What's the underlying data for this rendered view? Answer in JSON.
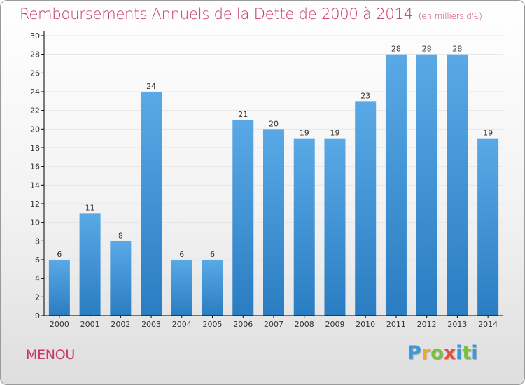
{
  "chart_data": {
    "type": "bar",
    "title": "Remboursements Annuels de la Dette de 2000 à 2014",
    "unit_label": "(en milliers d'€)",
    "categories": [
      "2000",
      "2001",
      "2002",
      "2003",
      "2004",
      "2005",
      "2006",
      "2007",
      "2008",
      "2009",
      "2010",
      "2011",
      "2012",
      "2013",
      "2014"
    ],
    "values": [
      6,
      11,
      8,
      24,
      6,
      6,
      21,
      20,
      19,
      19,
      23,
      28,
      28,
      28,
      19
    ],
    "xlabel": "",
    "ylabel": "",
    "ylim": [
      0,
      30
    ],
    "yticks": [
      0,
      2,
      4,
      6,
      8,
      10,
      12,
      14,
      16,
      18,
      20,
      22,
      24,
      26,
      28,
      30
    ],
    "grid": true,
    "data_labels": true
  },
  "commune": "MENOU",
  "logo": {
    "letters": [
      "P",
      "r",
      "o",
      "x",
      "i",
      "t",
      "i"
    ],
    "text": "Proxiti"
  },
  "colors": {
    "title": "#c8366c",
    "bar_light": "#5aa9e6",
    "bar_dark": "#2a7dc2",
    "grid": "#e6e6e6",
    "axis": "#000000"
  }
}
